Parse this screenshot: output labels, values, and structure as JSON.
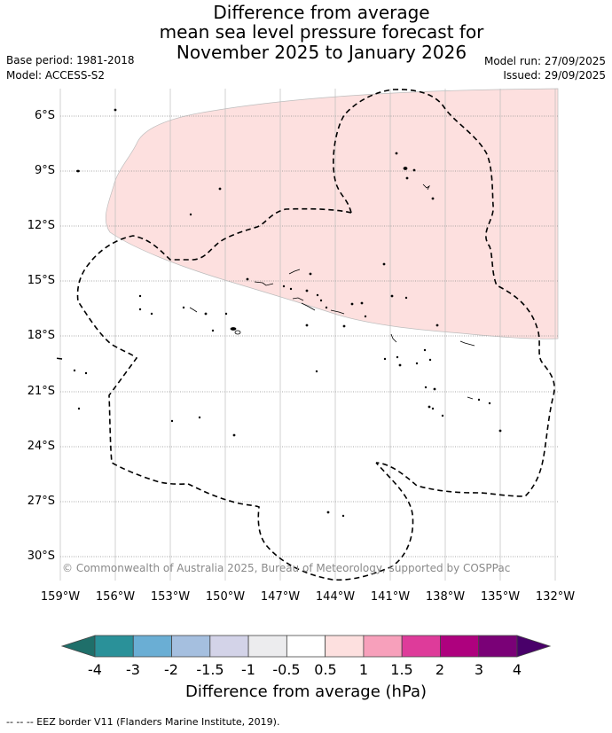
{
  "title": {
    "line1": "Difference from average",
    "line2": "mean sea level pressure forecast for",
    "line3": "November 2025 to January 2026"
  },
  "meta_left": {
    "base_period": "Base period: 1981-2018",
    "model": "Model: ACCESS-S2"
  },
  "meta_right": {
    "model_run": "Model run: 27/09/2025",
    "issued": "Issued: 29/09/2025"
  },
  "map": {
    "latitude_labels": [
      "6°S",
      "9°S",
      "12°S",
      "15°S",
      "18°S",
      "21°S",
      "24°S",
      "27°S",
      "30°S"
    ],
    "longitude_labels": [
      "159°W",
      "156°W",
      "153°W",
      "150°W",
      "147°W",
      "144°W",
      "141°W",
      "138°W",
      "135°W",
      "132°W"
    ],
    "anomaly_region_fill": "#fde0df",
    "anomaly_region_category": "0.5 to 1",
    "eez_border_style": "dashed"
  },
  "copyright": "© Commonwealth of Australia 2025, Bureau of Meteorology, supported by COSPPac",
  "colorbar": {
    "title": "Difference from average (hPa)",
    "ticks": [
      "-4",
      "-3",
      "-2",
      "-1.5",
      "-1",
      "-0.5",
      "0.5",
      "1",
      "1.5",
      "2",
      "3",
      "4"
    ],
    "colors": [
      "#1f6f6a",
      "#2a9199",
      "#6aaed4",
      "#a5bfdf",
      "#d3d3e8",
      "#ececee",
      "#ffffff",
      "#fde0df",
      "#f7a0bb",
      "#de3b9a",
      "#ae017e",
      "#7a0177",
      "#49006a"
    ]
  },
  "footnote": "--  --  -- EEZ border V11 (Flanders Marine Institute, 2019)."
}
